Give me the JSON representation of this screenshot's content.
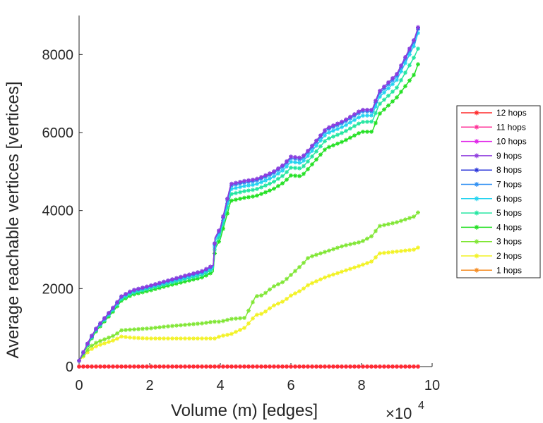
{
  "chart_data": {
    "type": "line",
    "title": "",
    "xlabel": "Volume (m) [edges]",
    "ylabel": "Average reachable vertices [vertices]",
    "x_multiplier_label": "×10",
    "x_multiplier_exponent": "4",
    "xlim": [
      0,
      10
    ],
    "ylim": [
      0,
      9000
    ],
    "xticks": [
      "0",
      "2",
      "4",
      "6",
      "8",
      "10"
    ],
    "xtick_values": [
      0,
      2,
      4,
      6,
      8,
      10
    ],
    "yticks": [
      "0",
      "2000",
      "4000",
      "6000",
      "8000"
    ],
    "ytick_values": [
      0,
      2000,
      4000,
      6000,
      8000
    ],
    "legend_position": "right",
    "x": [
      0,
      0.3,
      0.5,
      1.0,
      1.2,
      1.5,
      2,
      2.5,
      3,
      3.5,
      3.8,
      3.85,
      4.0,
      4.3,
      4.7,
      5.0,
      5.2,
      5.5,
      5.8,
      6.0,
      6.3,
      6.5,
      7.0,
      7.5,
      8.0,
      8.3,
      8.5,
      9.0,
      9.5,
      9.6
    ],
    "series": [
      {
        "name": "12 hops",
        "color": "#ff2a2a",
        "values": [
          0,
          0,
          0,
          0,
          0,
          0,
          0,
          0,
          0,
          0,
          0,
          0,
          0,
          0,
          0,
          0,
          0,
          0,
          0,
          0,
          0,
          0,
          0,
          0,
          0,
          0,
          0,
          0,
          0,
          0
        ]
      },
      {
        "name": "11 hops",
        "color": "#ff3399",
        "values": [
          0,
          0,
          0,
          0,
          0,
          0,
          0,
          0,
          0,
          0,
          0,
          0,
          0,
          0,
          0,
          0,
          0,
          0,
          0,
          0,
          0,
          0,
          0,
          0,
          0,
          0,
          0,
          0,
          0,
          0
        ]
      },
      {
        "name": "10 hops",
        "color": "#e020e8",
        "values": [
          0,
          0,
          0,
          0,
          0,
          0,
          0,
          0,
          0,
          0,
          0,
          0,
          0,
          0,
          0,
          0,
          0,
          0,
          0,
          0,
          0,
          0,
          0,
          0,
          0,
          0,
          0,
          0,
          0,
          0
        ]
      },
      {
        "name": "9 hops",
        "color": "#8f3dde",
        "values": [
          150,
          700,
          1000,
          1550,
          1800,
          1950,
          2070,
          2200,
          2330,
          2450,
          2600,
          3300,
          3550,
          4680,
          4760,
          4800,
          4870,
          4990,
          5180,
          5380,
          5350,
          5550,
          6100,
          6300,
          6580,
          6580,
          7050,
          7500,
          8400,
          8700
        ]
      },
      {
        "name": "8 hops",
        "color": "#2b36d9",
        "values": [
          150,
          700,
          1000,
          1550,
          1800,
          1950,
          2070,
          2200,
          2330,
          2450,
          2600,
          3300,
          3550,
          4680,
          4760,
          4800,
          4870,
          4990,
          5180,
          5380,
          5350,
          5550,
          6100,
          6300,
          6580,
          6580,
          7050,
          7500,
          8400,
          8680
        ]
      },
      {
        "name": "7 hops",
        "color": "#2e8ff2",
        "values": [
          150,
          690,
          990,
          1540,
          1790,
          1940,
          2060,
          2190,
          2310,
          2430,
          2580,
          3270,
          3520,
          4640,
          4720,
          4760,
          4830,
          4950,
          5140,
          5340,
          5310,
          5510,
          6060,
          6260,
          6540,
          6540,
          7000,
          7450,
          8350,
          8650
        ]
      },
      {
        "name": "6 hops",
        "color": "#22d3f0",
        "values": [
          150,
          680,
          980,
          1520,
          1770,
          1920,
          2040,
          2160,
          2280,
          2400,
          2550,
          3200,
          3460,
          4550,
          4630,
          4670,
          4740,
          4860,
          5050,
          5250,
          5220,
          5420,
          5970,
          6160,
          6430,
          6440,
          6900,
          7350,
          8250,
          8550
        ]
      },
      {
        "name": "5 hops",
        "color": "#22e6a0",
        "values": [
          150,
          660,
          960,
          1490,
          1730,
          1880,
          2000,
          2120,
          2240,
          2350,
          2500,
          3120,
          3380,
          4420,
          4500,
          4540,
          4610,
          4730,
          4910,
          5100,
          5080,
          5280,
          5820,
          6010,
          6270,
          6280,
          6720,
          7150,
          7950,
          8150
        ]
      },
      {
        "name": "4 hops",
        "color": "#22e022",
        "values": [
          150,
          640,
          930,
          1450,
          1690,
          1840,
          1950,
          2070,
          2180,
          2290,
          2430,
          3020,
          3270,
          4250,
          4330,
          4370,
          4440,
          4550,
          4720,
          4900,
          4880,
          5080,
          5600,
          5780,
          6020,
          6020,
          6470,
          6900,
          7500,
          7750
        ]
      },
      {
        "name": "3 hops",
        "color": "#7fe633",
        "values": [
          150,
          500,
          620,
          800,
          930,
          950,
          980,
          1030,
          1070,
          1110,
          1150,
          1150,
          1150,
          1220,
          1250,
          1800,
          1830,
          2050,
          2180,
          2350,
          2600,
          2800,
          2950,
          3100,
          3200,
          3350,
          3600,
          3700,
          3850,
          3950
        ]
      },
      {
        "name": "2 hops",
        "color": "#f2f222",
        "values": [
          150,
          420,
          530,
          680,
          770,
          740,
          720,
          720,
          720,
          720,
          720,
          720,
          780,
          830,
          1000,
          1320,
          1360,
          1560,
          1680,
          1820,
          1960,
          2100,
          2300,
          2450,
          2600,
          2700,
          2900,
          2950,
          3000,
          3050
        ]
      },
      {
        "name": "1 hops",
        "color": "#f58a1f",
        "values": [
          5,
          5,
          5,
          5,
          5,
          5,
          5,
          5,
          5,
          5,
          5,
          5,
          5,
          5,
          5,
          5,
          5,
          5,
          5,
          5,
          5,
          5,
          5,
          5,
          5,
          5,
          5,
          5,
          5,
          5
        ]
      }
    ]
  }
}
